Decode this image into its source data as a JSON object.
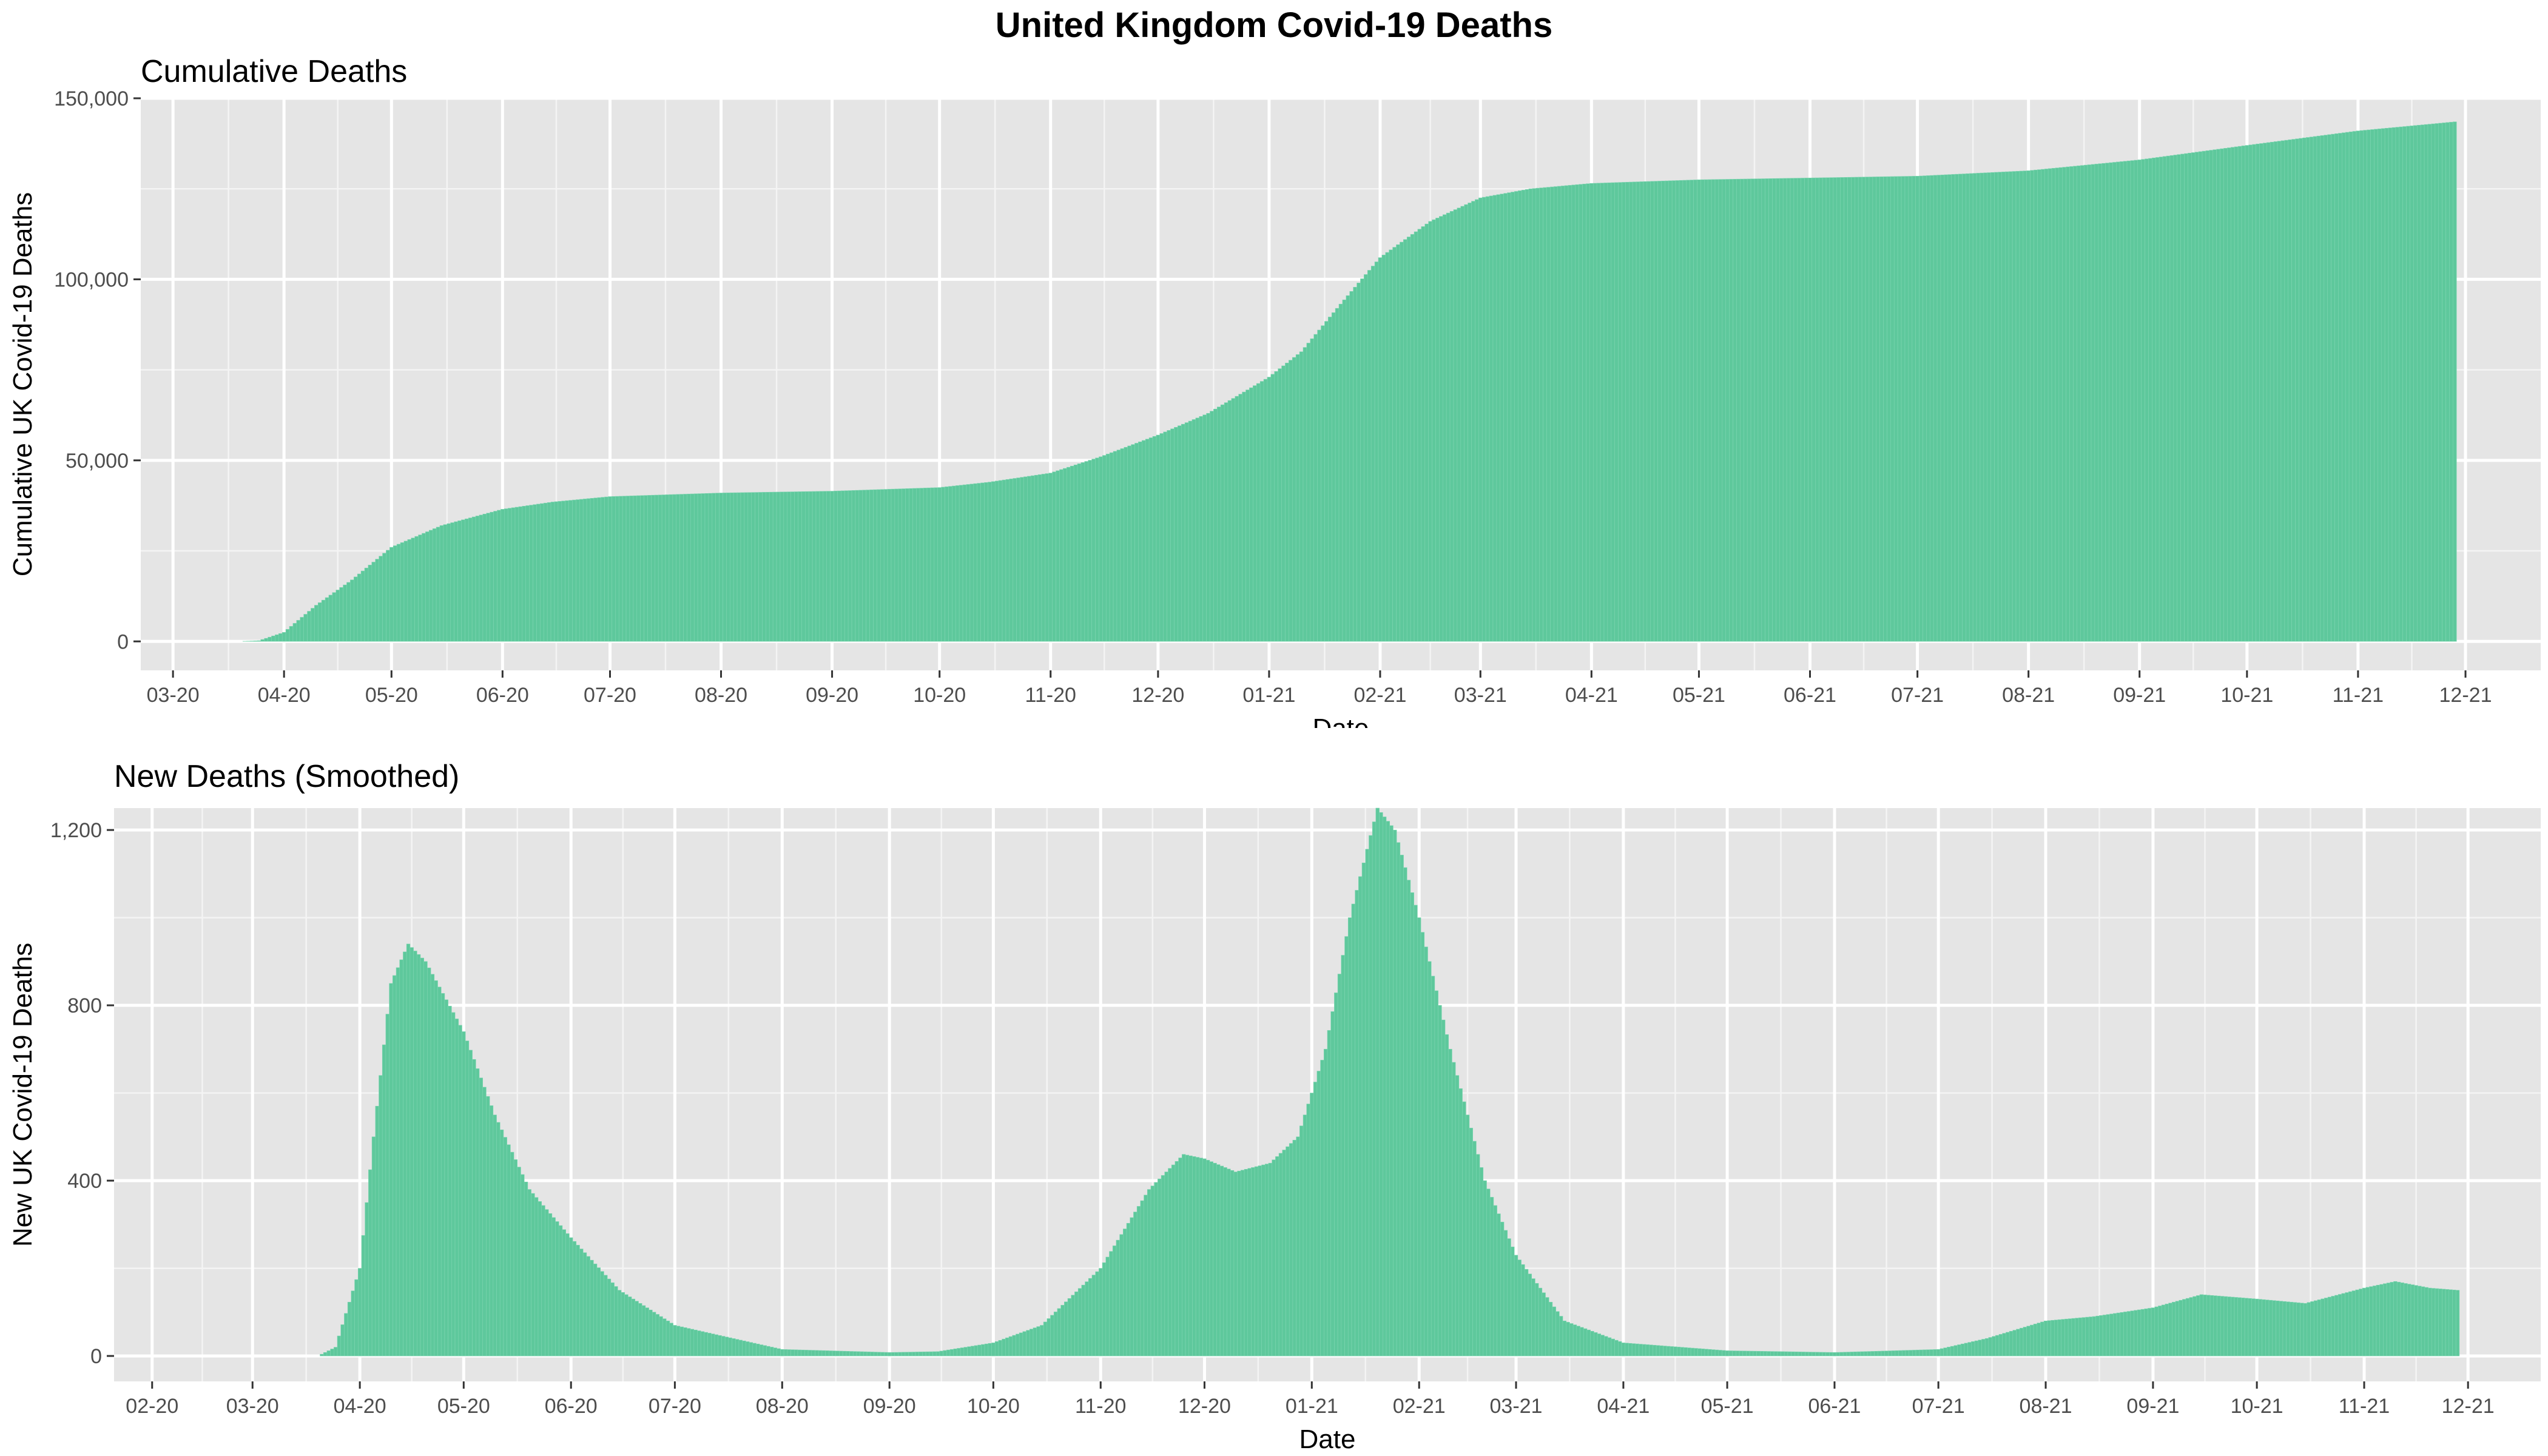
{
  "page": {
    "title": "United Kingdom Covid-19 Deaths"
  },
  "chart_data": [
    {
      "type": "bar",
      "title": "Cumulative Deaths",
      "xlabel": "Date",
      "ylabel": "Cumulative UK Covid-19 Deaths",
      "bar_color": "#5ec89c",
      "panel_color": "#e5e5e5",
      "grid": true,
      "x_start": "2020-01-31",
      "x_end": "2021-11-28",
      "xlim": [
        "2020-02-21",
        "2021-12-22"
      ],
      "ylim": [
        -8000,
        150000
      ],
      "x_ticks": [
        {
          "date": "2020-03-01",
          "label": "03-20"
        },
        {
          "date": "2020-04-01",
          "label": "04-20"
        },
        {
          "date": "2020-05-01",
          "label": "05-20"
        },
        {
          "date": "2020-06-01",
          "label": "06-20"
        },
        {
          "date": "2020-07-01",
          "label": "07-20"
        },
        {
          "date": "2020-08-01",
          "label": "08-20"
        },
        {
          "date": "2020-09-01",
          "label": "09-20"
        },
        {
          "date": "2020-10-01",
          "label": "10-20"
        },
        {
          "date": "2020-11-01",
          "label": "11-20"
        },
        {
          "date": "2020-12-01",
          "label": "12-20"
        },
        {
          "date": "2021-01-01",
          "label": "01-21"
        },
        {
          "date": "2021-02-01",
          "label": "02-21"
        },
        {
          "date": "2021-03-01",
          "label": "03-21"
        },
        {
          "date": "2021-04-01",
          "label": "04-21"
        },
        {
          "date": "2021-05-01",
          "label": "05-21"
        },
        {
          "date": "2021-06-01",
          "label": "06-21"
        },
        {
          "date": "2021-07-01",
          "label": "07-21"
        },
        {
          "date": "2021-08-01",
          "label": "08-21"
        },
        {
          "date": "2021-09-01",
          "label": "09-21"
        },
        {
          "date": "2021-10-01",
          "label": "10-21"
        },
        {
          "date": "2021-11-01",
          "label": "11-21"
        },
        {
          "date": "2021-12-01",
          "label": "12-21"
        }
      ],
      "y_ticks": [
        {
          "value": 0,
          "label": "0"
        },
        {
          "value": 50000,
          "label": "50,000"
        },
        {
          "value": 100000,
          "label": "100,000"
        },
        {
          "value": 150000,
          "label": "150,000"
        }
      ],
      "values_by_date": [
        [
          "2020-01-31",
          0
        ],
        [
          "2020-03-20",
          0
        ],
        [
          "2020-03-25",
          200
        ],
        [
          "2020-04-01",
          2500
        ],
        [
          "2020-04-10",
          10000
        ],
        [
          "2020-04-20",
          17000
        ],
        [
          "2020-05-01",
          26000
        ],
        [
          "2020-05-15",
          32000
        ],
        [
          "2020-06-01",
          36500
        ],
        [
          "2020-06-15",
          38500
        ],
        [
          "2020-07-01",
          40000
        ],
        [
          "2020-08-01",
          41000
        ],
        [
          "2020-09-01",
          41500
        ],
        [
          "2020-10-01",
          42500
        ],
        [
          "2020-10-15",
          44000
        ],
        [
          "2020-11-01",
          46500
        ],
        [
          "2020-11-15",
          51000
        ],
        [
          "2020-12-01",
          57000
        ],
        [
          "2020-12-15",
          63000
        ],
        [
          "2021-01-01",
          73000
        ],
        [
          "2021-01-10",
          80000
        ],
        [
          "2021-01-20",
          92000
        ],
        [
          "2021-02-01",
          106000
        ],
        [
          "2021-02-15",
          116000
        ],
        [
          "2021-03-01",
          122500
        ],
        [
          "2021-03-15",
          125000
        ],
        [
          "2021-04-01",
          126500
        ],
        [
          "2021-05-01",
          127500
        ],
        [
          "2021-06-01",
          128000
        ],
        [
          "2021-07-01",
          128500
        ],
        [
          "2021-08-01",
          130000
        ],
        [
          "2021-09-01",
          133000
        ],
        [
          "2021-10-01",
          137000
        ],
        [
          "2021-11-01",
          141000
        ],
        [
          "2021-11-28",
          143500
        ]
      ]
    },
    {
      "type": "bar",
      "title": "New Deaths (Smoothed)",
      "xlabel": "Date",
      "ylabel": "New UK Covid-19 Deaths",
      "bar_color": "#5ec89c",
      "panel_color": "#e5e5e5",
      "grid": true,
      "x_start": "2020-01-31",
      "x_end": "2021-11-28",
      "xlim": [
        "2020-01-21",
        "2021-12-22"
      ],
      "ylim": [
        -58,
        1250
      ],
      "x_ticks": [
        {
          "date": "2020-02-01",
          "label": "02-20"
        },
        {
          "date": "2020-03-01",
          "label": "03-20"
        },
        {
          "date": "2020-04-01",
          "label": "04-20"
        },
        {
          "date": "2020-05-01",
          "label": "05-20"
        },
        {
          "date": "2020-06-01",
          "label": "06-20"
        },
        {
          "date": "2020-07-01",
          "label": "07-20"
        },
        {
          "date": "2020-08-01",
          "label": "08-20"
        },
        {
          "date": "2020-09-01",
          "label": "09-20"
        },
        {
          "date": "2020-10-01",
          "label": "10-20"
        },
        {
          "date": "2020-11-01",
          "label": "11-20"
        },
        {
          "date": "2020-12-01",
          "label": "12-20"
        },
        {
          "date": "2021-01-01",
          "label": "01-21"
        },
        {
          "date": "2021-02-01",
          "label": "02-21"
        },
        {
          "date": "2021-03-01",
          "label": "03-21"
        },
        {
          "date": "2021-04-01",
          "label": "04-21"
        },
        {
          "date": "2021-05-01",
          "label": "05-21"
        },
        {
          "date": "2021-06-01",
          "label": "06-21"
        },
        {
          "date": "2021-07-01",
          "label": "07-21"
        },
        {
          "date": "2021-08-01",
          "label": "08-21"
        },
        {
          "date": "2021-09-01",
          "label": "09-21"
        },
        {
          "date": "2021-10-01",
          "label": "10-21"
        },
        {
          "date": "2021-11-01",
          "label": "11-21"
        },
        {
          "date": "2021-12-01",
          "label": "12-21"
        }
      ],
      "y_ticks": [
        {
          "value": 0,
          "label": "0"
        },
        {
          "value": 400,
          "label": "400"
        },
        {
          "value": 800,
          "label": "800"
        },
        {
          "value": 1200,
          "label": "1,200"
        }
      ],
      "values_by_date": [
        [
          "2020-01-31",
          0
        ],
        [
          "2020-03-20",
          0
        ],
        [
          "2020-03-25",
          20
        ],
        [
          "2020-04-01",
          200
        ],
        [
          "2020-04-05",
          500
        ],
        [
          "2020-04-10",
          850
        ],
        [
          "2020-04-15",
          940
        ],
        [
          "2020-04-20",
          900
        ],
        [
          "2020-05-01",
          740
        ],
        [
          "2020-05-10",
          550
        ],
        [
          "2020-05-20",
          380
        ],
        [
          "2020-06-01",
          270
        ],
        [
          "2020-06-15",
          150
        ],
        [
          "2020-07-01",
          70
        ],
        [
          "2020-07-15",
          45
        ],
        [
          "2020-08-01",
          15
        ],
        [
          "2020-09-01",
          8
        ],
        [
          "2020-09-15",
          10
        ],
        [
          "2020-10-01",
          30
        ],
        [
          "2020-10-15",
          70
        ],
        [
          "2020-11-01",
          200
        ],
        [
          "2020-11-15",
          380
        ],
        [
          "2020-11-25",
          460
        ],
        [
          "2020-12-01",
          450
        ],
        [
          "2020-12-10",
          420
        ],
        [
          "2020-12-20",
          440
        ],
        [
          "2020-12-28",
          500
        ],
        [
          "2021-01-05",
          700
        ],
        [
          "2021-01-12",
          1000
        ],
        [
          "2021-01-20",
          1250
        ],
        [
          "2021-01-25",
          1200
        ],
        [
          "2021-02-01",
          1000
        ],
        [
          "2021-02-10",
          700
        ],
        [
          "2021-02-20",
          400
        ],
        [
          "2021-03-01",
          230
        ],
        [
          "2021-03-15",
          80
        ],
        [
          "2021-04-01",
          30
        ],
        [
          "2021-05-01",
          12
        ],
        [
          "2021-06-01",
          8
        ],
        [
          "2021-07-01",
          15
        ],
        [
          "2021-07-15",
          40
        ],
        [
          "2021-08-01",
          80
        ],
        [
          "2021-08-15",
          90
        ],
        [
          "2021-09-01",
          110
        ],
        [
          "2021-09-15",
          140
        ],
        [
          "2021-10-01",
          130
        ],
        [
          "2021-10-15",
          120
        ],
        [
          "2021-11-01",
          155
        ],
        [
          "2021-11-10",
          170
        ],
        [
          "2021-11-20",
          155
        ],
        [
          "2021-11-28",
          150
        ]
      ]
    }
  ]
}
